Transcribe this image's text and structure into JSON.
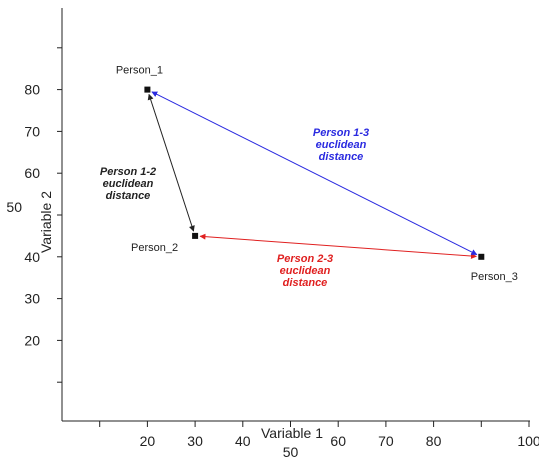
{
  "chart_data": {
    "type": "scatter",
    "title": "",
    "xlabel": "Variable 1",
    "ylabel": "Variable 2",
    "xlim": [
      0,
      100
    ],
    "ylim": [
      0,
      100
    ],
    "grid": false,
    "x_ticks": [
      {
        "value": 10,
        "label": ""
      },
      {
        "value": 20,
        "label": "20"
      },
      {
        "value": 30,
        "label": "30"
      },
      {
        "value": 40,
        "label": "40"
      },
      {
        "value": 50,
        "label": "50"
      },
      {
        "value": 60,
        "label": "60"
      },
      {
        "value": 70,
        "label": "70"
      },
      {
        "value": 80,
        "label": "80"
      },
      {
        "value": 90,
        "label": ""
      },
      {
        "value": 100,
        "label": "100"
      }
    ],
    "y_ticks": [
      {
        "value": 20,
        "label": "20"
      },
      {
        "value": 30,
        "label": "30"
      },
      {
        "value": 40,
        "label": "40"
      },
      {
        "value": 50,
        "label": "50"
      },
      {
        "value": 60,
        "label": "60"
      },
      {
        "value": 70,
        "label": "70"
      },
      {
        "value": 80,
        "label": "80"
      },
      {
        "value": 90,
        "label": ""
      },
      {
        "value": 10,
        "label": ""
      }
    ],
    "points": [
      {
        "name": "Person_1",
        "x": 20,
        "y": 80,
        "color": "#111111"
      },
      {
        "name": "Person_2",
        "x": 30,
        "y": 45,
        "color": "#111111"
      },
      {
        "name": "Person_3",
        "x": 90,
        "y": 40,
        "color": "#111111"
      }
    ],
    "segments": [
      {
        "from": "Person_1",
        "to": "Person_2",
        "color": "#222222",
        "label": [
          "Person 1-2",
          "euclidean",
          "distance"
        ]
      },
      {
        "from": "Person_2",
        "to": "Person_3",
        "color": "#e02020",
        "label": [
          "Person 2-3",
          "euclidean",
          "distance"
        ]
      },
      {
        "from": "Person_3",
        "to": "Person_1",
        "color": "#2a2ae0",
        "label": [
          "Person 1-3",
          "euclidean",
          "distance"
        ]
      }
    ]
  }
}
